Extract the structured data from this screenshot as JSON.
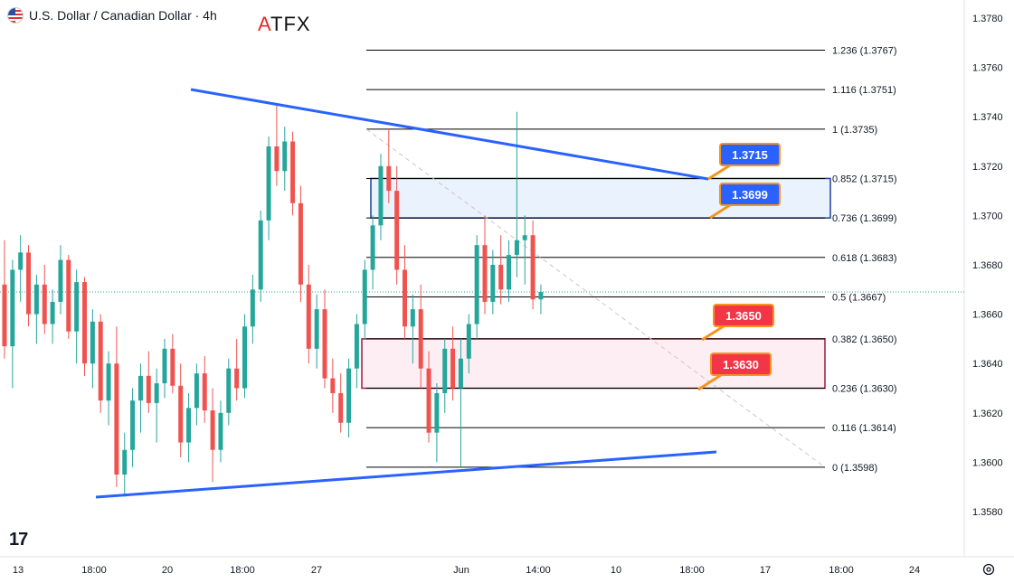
{
  "header": {
    "title": "U.S. Dollar / Canadian Dollar · 4h",
    "flag_icon": "usd-cad-flag-icon"
  },
  "brand": {
    "name": "ATFX"
  },
  "colors": {
    "up": "#26a69a",
    "down": "#ef5350",
    "trendline": "#2962ff",
    "fib": "#000000",
    "res_zone_border": "#1e3fa0",
    "res_zone_fill": "#e9f2fd",
    "sup_zone_border": "#9e1b3b",
    "sup_zone_fill": "#fdeef3",
    "label_blue": "#2962ff",
    "label_red": "#f23645",
    "callout_border": "#f7931e"
  },
  "price_axis": {
    "ticks": [
      "1.3780",
      "1.3760",
      "1.3740",
      "1.3720",
      "1.3700",
      "1.3680",
      "1.3660",
      "1.3640",
      "1.3620",
      "1.3600",
      "1.3580"
    ]
  },
  "time_axis": {
    "ticks": [
      "13",
      "18:00",
      "20",
      "18:00",
      "27",
      "Jun",
      "14:00",
      "10",
      "18:00",
      "17",
      "18:00",
      "24"
    ]
  },
  "fib_levels": [
    {
      "label": "1.236 (1.3767)",
      "price": 1.3767
    },
    {
      "label": "1.116 (1.3751)",
      "price": 1.3751
    },
    {
      "label": "1 (1.3735)",
      "price": 1.3735
    },
    {
      "label": "0.852 (1.3715)",
      "price": 1.3715
    },
    {
      "label": "0.736 (1.3699)",
      "price": 1.3699
    },
    {
      "label": "0.618 (1.3683)",
      "price": 1.3683
    },
    {
      "label": "0.5 (1.3667)",
      "price": 1.3667
    },
    {
      "label": "0.382 (1.3650)",
      "price": 1.365
    },
    {
      "label": "0.236 (1.3630)",
      "price": 1.363
    },
    {
      "label": "0.116 (1.3614)",
      "price": 1.3614
    },
    {
      "label": "0 (1.3598)",
      "price": 1.3598
    }
  ],
  "callouts": [
    {
      "text": "1.3715",
      "price": 1.3715,
      "color": "blue"
    },
    {
      "text": "1.3699",
      "price": 1.3699,
      "color": "blue"
    },
    {
      "text": "1.3650",
      "price": 1.365,
      "color": "red"
    },
    {
      "text": "1.3630",
      "price": 1.363,
      "color": "red"
    }
  ],
  "zones": [
    {
      "name": "resistance",
      "top": 1.3715,
      "bottom": 1.3699
    },
    {
      "name": "support",
      "top": 1.365,
      "bottom": 1.363
    }
  ],
  "current_price": 1.3669,
  "chart_data": {
    "type": "candlestick",
    "title": "U.S. Dollar / Canadian Dollar · 4h",
    "ylim": [
      1.3575,
      1.3785
    ],
    "candles": [
      [
        1.3672,
        1.369,
        1.3642,
        1.3647
      ],
      [
        1.3647,
        1.3682,
        1.363,
        1.3678
      ],
      [
        1.3678,
        1.3692,
        1.3665,
        1.3685
      ],
      [
        1.3685,
        1.3688,
        1.3655,
        1.366
      ],
      [
        1.366,
        1.3676,
        1.3648,
        1.3672
      ],
      [
        1.3672,
        1.368,
        1.3652,
        1.3656
      ],
      [
        1.3656,
        1.367,
        1.3648,
        1.3665
      ],
      [
        1.3665,
        1.3688,
        1.366,
        1.3682
      ],
      [
        1.3682,
        1.3684,
        1.365,
        1.3653
      ],
      [
        1.3653,
        1.3678,
        1.364,
        1.3673
      ],
      [
        1.3673,
        1.3675,
        1.3635,
        1.364
      ],
      [
        1.364,
        1.3662,
        1.363,
        1.3657
      ],
      [
        1.3657,
        1.366,
        1.362,
        1.3625
      ],
      [
        1.3625,
        1.3645,
        1.3615,
        1.364
      ],
      [
        1.364,
        1.3655,
        1.359,
        1.3595
      ],
      [
        1.3595,
        1.3612,
        1.3586,
        1.3605
      ],
      [
        1.3605,
        1.363,
        1.3598,
        1.3625
      ],
      [
        1.3625,
        1.364,
        1.3612,
        1.3635
      ],
      [
        1.3635,
        1.3645,
        1.362,
        1.3624
      ],
      [
        1.3624,
        1.3638,
        1.3608,
        1.3632
      ],
      [
        1.3632,
        1.365,
        1.3626,
        1.3646
      ],
      [
        1.3646,
        1.3652,
        1.3628,
        1.3631
      ],
      [
        1.3631,
        1.364,
        1.3602,
        1.3608
      ],
      [
        1.3608,
        1.3628,
        1.36,
        1.3622
      ],
      [
        1.3622,
        1.364,
        1.3615,
        1.3636
      ],
      [
        1.3636,
        1.3643,
        1.3616,
        1.3621
      ],
      [
        1.3621,
        1.363,
        1.3592,
        1.3605
      ],
      [
        1.3605,
        1.3625,
        1.36,
        1.362
      ],
      [
        1.362,
        1.3642,
        1.3615,
        1.3638
      ],
      [
        1.3638,
        1.365,
        1.3625,
        1.363
      ],
      [
        1.363,
        1.366,
        1.3626,
        1.3655
      ],
      [
        1.3655,
        1.3676,
        1.3648,
        1.367
      ],
      [
        1.367,
        1.3702,
        1.3665,
        1.3698
      ],
      [
        1.3698,
        1.3732,
        1.369,
        1.3728
      ],
      [
        1.3728,
        1.3745,
        1.3712,
        1.3718
      ],
      [
        1.3718,
        1.3736,
        1.371,
        1.373
      ],
      [
        1.373,
        1.3734,
        1.37,
        1.3705
      ],
      [
        1.3705,
        1.3712,
        1.3665,
        1.3672
      ],
      [
        1.3672,
        1.368,
        1.364,
        1.3646
      ],
      [
        1.3646,
        1.3668,
        1.3638,
        1.3662
      ],
      [
        1.3662,
        1.367,
        1.363,
        1.3634
      ],
      [
        1.3634,
        1.3642,
        1.362,
        1.3628
      ],
      [
        1.3628,
        1.3636,
        1.3612,
        1.3616
      ],
      [
        1.3616,
        1.3642,
        1.361,
        1.3638
      ],
      [
        1.3638,
        1.366,
        1.363,
        1.3656
      ],
      [
        1.3656,
        1.3682,
        1.365,
        1.3678
      ],
      [
        1.3678,
        1.37,
        1.367,
        1.3696
      ],
      [
        1.3696,
        1.3725,
        1.369,
        1.372
      ],
      [
        1.372,
        1.3735,
        1.3705,
        1.371
      ],
      [
        1.371,
        1.372,
        1.3672,
        1.3678
      ],
      [
        1.3678,
        1.3688,
        1.365,
        1.3655
      ],
      [
        1.3655,
        1.3668,
        1.364,
        1.3662
      ],
      [
        1.3662,
        1.3672,
        1.363,
        1.3638
      ],
      [
        1.3638,
        1.3645,
        1.3608,
        1.3612
      ],
      [
        1.3612,
        1.3632,
        1.36,
        1.3628
      ],
      [
        1.3628,
        1.365,
        1.362,
        1.3646
      ],
      [
        1.3646,
        1.3655,
        1.3625,
        1.363
      ],
      [
        1.363,
        1.365,
        1.3598,
        1.3642
      ],
      [
        1.3642,
        1.366,
        1.3636,
        1.3656
      ],
      [
        1.3656,
        1.3692,
        1.365,
        1.3688
      ],
      [
        1.3688,
        1.37,
        1.366,
        1.3665
      ],
      [
        1.3665,
        1.3686,
        1.366,
        1.368
      ],
      [
        1.368,
        1.3692,
        1.3664,
        1.367
      ],
      [
        1.367,
        1.369,
        1.3665,
        1.3684
      ],
      [
        1.3684,
        1.3742,
        1.3675,
        1.369
      ],
      [
        1.369,
        1.37,
        1.3672,
        1.3692
      ],
      [
        1.3692,
        1.3698,
        1.3662,
        1.3666
      ],
      [
        1.3666,
        1.3672,
        1.366,
        1.3669
      ]
    ]
  }
}
